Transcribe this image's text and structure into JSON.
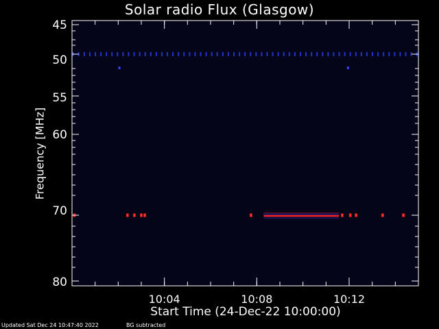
{
  "chart_data": {
    "type": "heatmap",
    "title": "Solar radio Flux (Glasgow)",
    "xlabel": "Start Time (24-Dec-22 10:00:00)",
    "ylabel": "Frequency [MHz]",
    "x_unit": "minutes after 10:00:00",
    "xlim": [
      0,
      15
    ],
    "x_ticks": [
      {
        "value": 4,
        "label": "10:04"
      },
      {
        "value": 8,
        "label": "10:08"
      },
      {
        "value": 12,
        "label": "10:12"
      }
    ],
    "y_ticks": [
      "45",
      "50",
      "55",
      "60",
      "70",
      "80"
    ],
    "background_color": "#05051a",
    "features": [
      {
        "name": "dotted-band",
        "row": "50",
        "color": "#2233cc",
        "x_start": 0,
        "x_end": 15,
        "spacing_min": 0.24
      },
      {
        "name": "dot",
        "row": "50",
        "offset": 1.2,
        "x": 2.05,
        "color": "#3344ff"
      },
      {
        "name": "dot",
        "row": "50",
        "offset": 1.2,
        "x": 11.95,
        "color": "#3344ff"
      },
      {
        "name": "strong-emission",
        "row": "70",
        "x_start": 8.3,
        "x_end": 11.55,
        "color": "#ff2020"
      },
      {
        "name": "emission-blips",
        "row": "70",
        "x": [
          0.1,
          2.4,
          2.7,
          3.0,
          3.15,
          7.75,
          11.7,
          12.05,
          12.3,
          13.45,
          14.35
        ],
        "color": "#ff3030"
      },
      {
        "name": "faint-band",
        "row": "70",
        "offset": -1.7,
        "x_start": 8.3,
        "x_end": 11.55,
        "color": "#18185a"
      },
      {
        "name": "faint-band",
        "row": "70",
        "offset": 4.0,
        "x_start": 8.3,
        "x_end": 11.55,
        "color": "#141448"
      }
    ]
  },
  "footer": {
    "updated": "Updated Sat Dec 24 10:47:40 2022",
    "note": "BG subtracted"
  }
}
